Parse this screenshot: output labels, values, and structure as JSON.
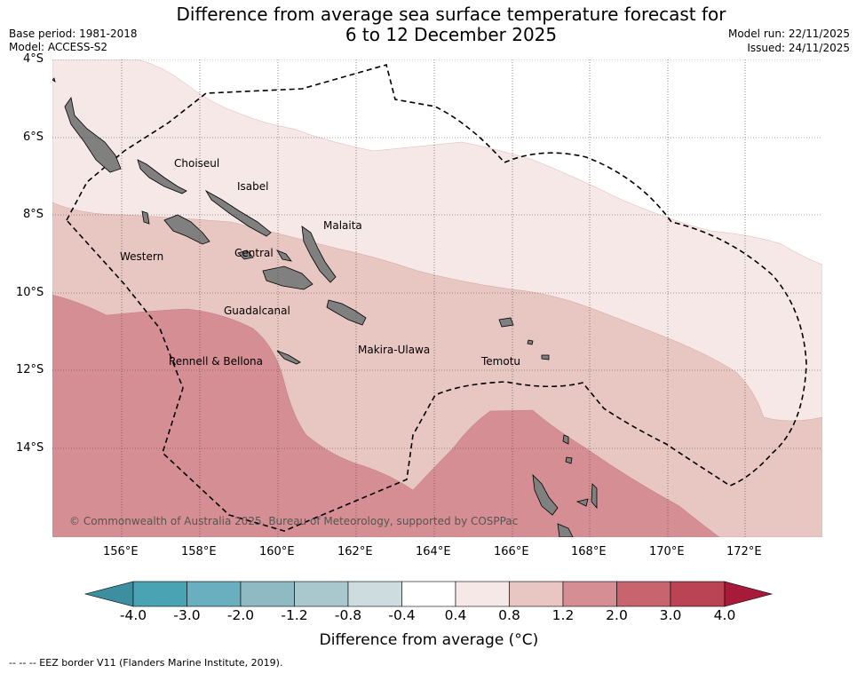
{
  "title": {
    "line1": "Difference from average sea surface temperature forecast for",
    "line2": "6 to 12 December 2025"
  },
  "meta": {
    "base_period": "Base period: 1981-2018",
    "model": "Model: ACCESS-S2",
    "model_run": "Model run: 22/11/2025",
    "issued": "Issued: 24/11/2025"
  },
  "map": {
    "latitude_labels": [
      "4°S",
      "6°S",
      "8°S",
      "10°S",
      "12°S",
      "14°S"
    ],
    "longitude_labels": [
      "156°E",
      "158°E",
      "160°E",
      "162°E",
      "164°E",
      "166°E",
      "168°E",
      "170°E",
      "172°E"
    ],
    "provinces": [
      "Choiseul",
      "Isabel",
      "Malaita",
      "Western",
      "Central",
      "Guadalcanal",
      "Makira-Ulawa",
      "Rennell & Bellona",
      "Temotu"
    ],
    "copyright": "© Commonwealth of Australia 2025, Bureau of Meteorology, supported by COSPPac",
    "land_color": "#808080",
    "eez_line_color": "#000000"
  },
  "colorbar": {
    "title": "Difference from average (°C)",
    "tick_labels": [
      "-4.0",
      "-3.0",
      "-2.0",
      "-1.2",
      "-0.8",
      "-0.4",
      "0.4",
      "0.8",
      "1.2",
      "2.0",
      "3.0",
      "4.0"
    ],
    "colors": [
      "#3d8f9f",
      "#4aa3b3",
      "#6aafbf",
      "#8fbac4",
      "#a9c8cd",
      "#cddcde",
      "#ffffff",
      "#f5e8e6",
      "#e8c6c1",
      "#d68e95",
      "#c8646e",
      "#bb4454",
      "#a81a3a"
    ]
  },
  "footnote": "-- -- -- EEZ border V11 (Flanders Marine Institute, 2019)."
}
